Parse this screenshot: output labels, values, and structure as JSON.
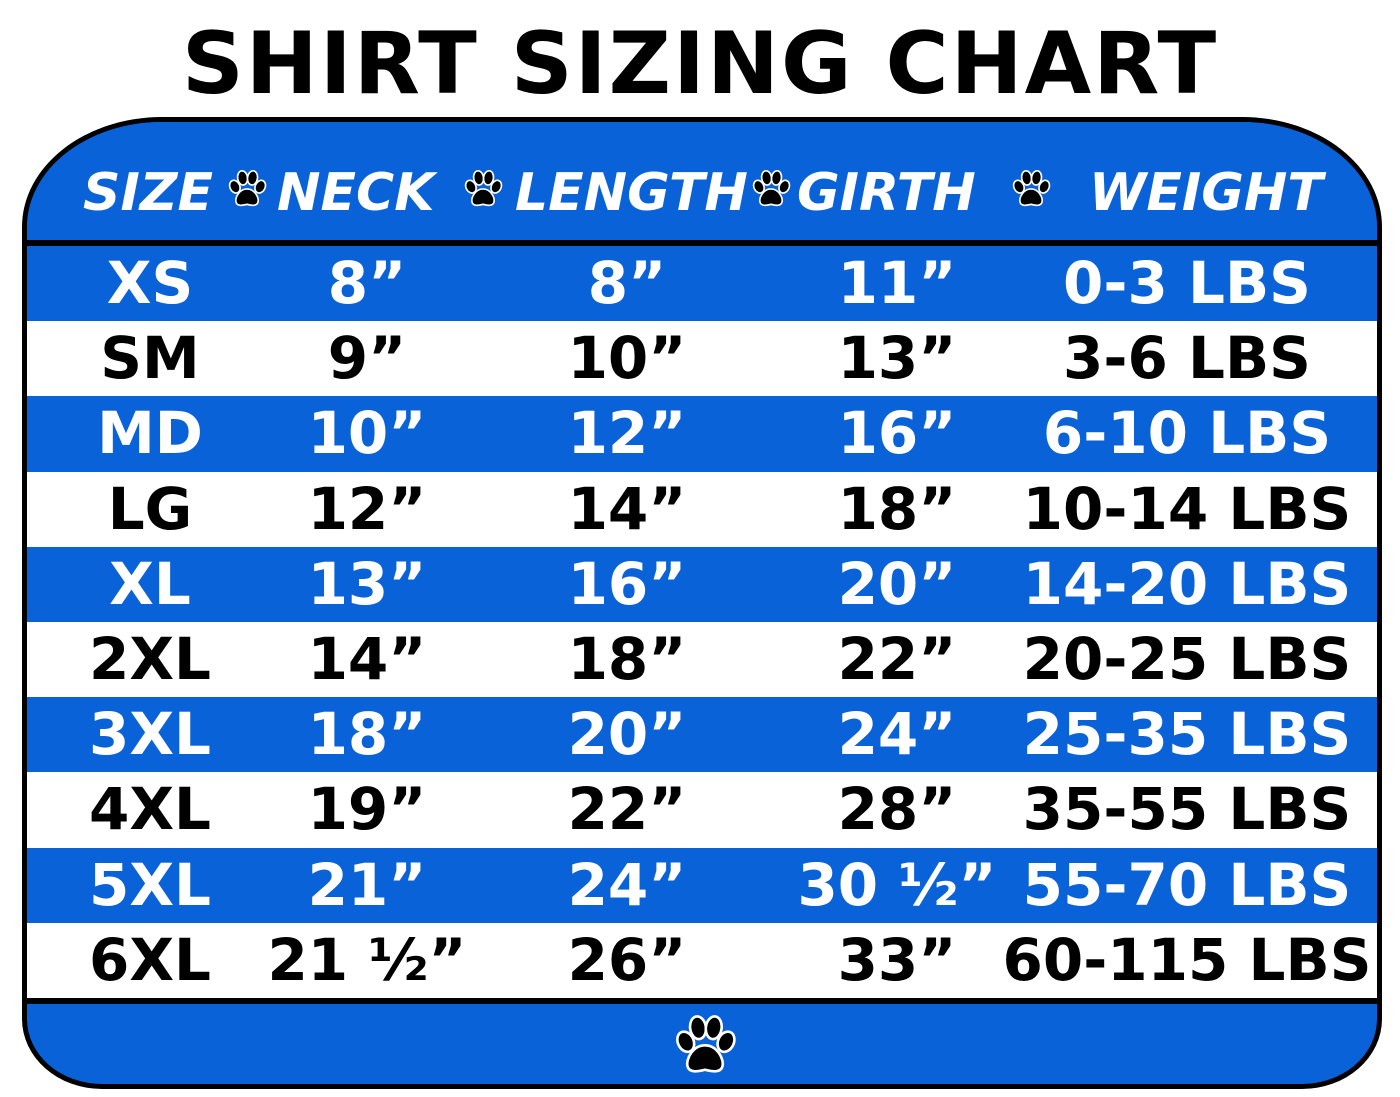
{
  "title": "SHIRT SIZING CHART",
  "colors": {
    "blue": "#0a62d8",
    "white": "#ffffff",
    "border": "#000000"
  },
  "header": [
    "SIZE",
    "NECK",
    "LENGTH",
    "GIRTH",
    "WEIGHT"
  ],
  "icons": {
    "separator": "paw-print-icon",
    "footer": "paw-print-icon"
  },
  "rows": [
    [
      "XS",
      "8”",
      "8”",
      "11”",
      "0-3 LBS"
    ],
    [
      "SM",
      "9”",
      "10”",
      "13”",
      "3-6 LBS"
    ],
    [
      "MD",
      "10”",
      "12”",
      "16”",
      "6-10 LBS"
    ],
    [
      "LG",
      "12”",
      "14”",
      "18”",
      "10-14 LBS"
    ],
    [
      "XL",
      "13”",
      "16”",
      "20”",
      "14-20 LBS"
    ],
    [
      "2XL",
      "14”",
      "18”",
      "22”",
      "20-25 LBS"
    ],
    [
      "3XL",
      "18”",
      "20”",
      "24”",
      "25-35 LBS"
    ],
    [
      "4XL",
      "19”",
      "22”",
      "28”",
      "35-55 LBS"
    ],
    [
      "5XL",
      "21”",
      "24”",
      "30 ½”",
      "55-70 LBS"
    ],
    [
      "6XL",
      "21 ½”",
      "26”",
      "33”",
      "60-115 LBS"
    ]
  ]
}
